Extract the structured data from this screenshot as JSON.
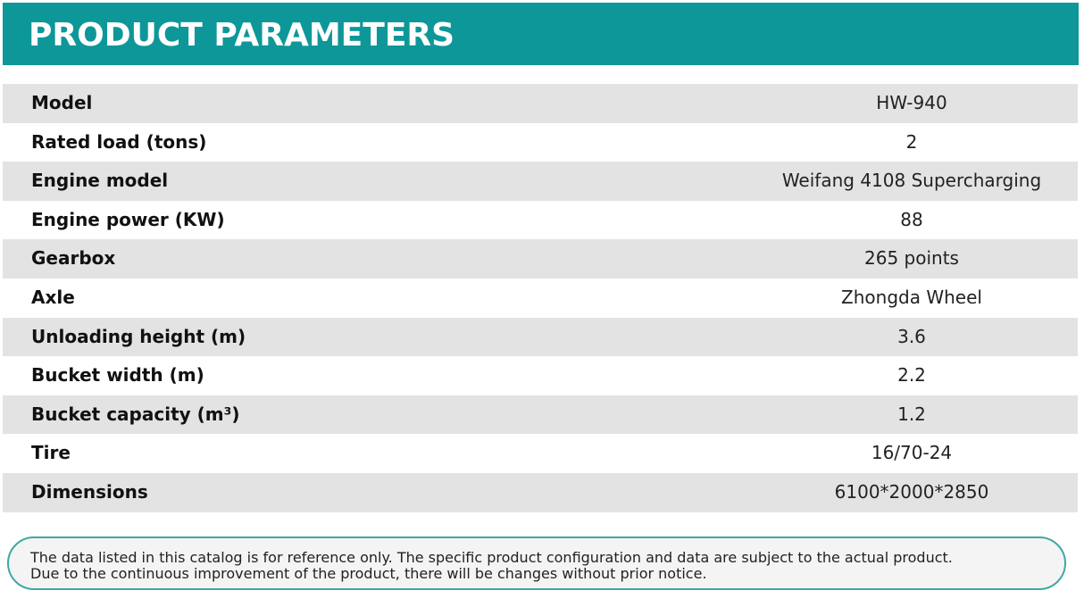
{
  "header": {
    "title": "PRODUCT PARAMETERS",
    "background_color": "#0e9799"
  },
  "parameters": [
    {
      "label": "Model",
      "value": "HW-940"
    },
    {
      "label": "Rated load (tons)",
      "value": "2"
    },
    {
      "label": "Engine model",
      "value": "Weifang 4108 Supercharging"
    },
    {
      "label": "Engine power (KW)",
      "value": "88"
    },
    {
      "label": "Gearbox",
      "value": "265 points"
    },
    {
      "label": "Axle",
      "value": "Zhongda Wheel"
    },
    {
      "label": "Unloading height (m)",
      "value": "3.6"
    },
    {
      "label": "Bucket width (m)",
      "value": "2.2"
    },
    {
      "label": "Bucket capacity (m³)",
      "value": "1.2"
    },
    {
      "label": "Tire",
      "value": "16/70-24"
    },
    {
      "label": "Dimensions",
      "value": "6100*2000*2850"
    }
  ],
  "notice": {
    "line1": "The data listed in this catalog is for reference only. The specific product configuration and data are subject to the actual product.",
    "line2": "Due to the continuous improvement of the product, there will be changes without prior notice.",
    "border_color": "#3fa8a3"
  },
  "colors": {
    "shaded_row": "#e3e3e3",
    "text": "#111111"
  }
}
